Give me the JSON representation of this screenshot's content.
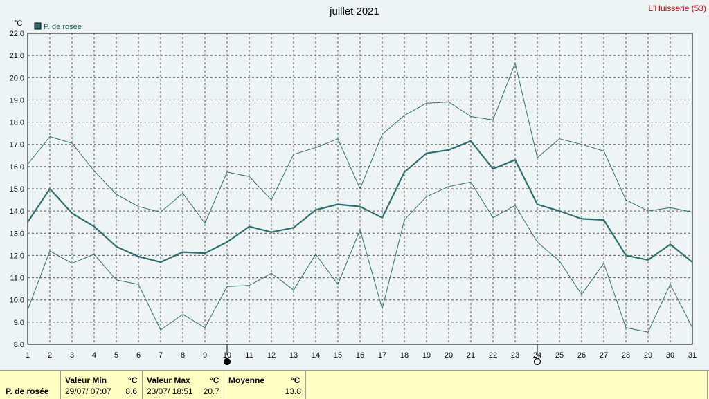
{
  "header": {
    "title": "juillet 2021",
    "station": "L'Huisserie (53)"
  },
  "colors": {
    "series": "#2e6d6d",
    "grid": "#555555",
    "station": "#cc0000",
    "stats_bg": "#ffffc4"
  },
  "chart_data": {
    "type": "line",
    "title": "juillet 2021",
    "ylabel": "°C",
    "xlabel": "",
    "ylim": [
      8.0,
      22.0
    ],
    "y_ticks": [
      "8.0",
      "9.0",
      "10.0",
      "11.0",
      "12.0",
      "13.0",
      "14.0",
      "15.0",
      "16.0",
      "17.0",
      "18.0",
      "19.0",
      "20.0",
      "21.0",
      "22.0"
    ],
    "x": [
      1,
      2,
      3,
      4,
      5,
      6,
      7,
      8,
      9,
      10,
      11,
      12,
      13,
      14,
      15,
      16,
      17,
      18,
      19,
      20,
      21,
      22,
      23,
      24,
      25,
      26,
      27,
      28,
      29,
      30,
      31
    ],
    "x_tick_labels": [
      "1",
      "2",
      "3",
      "4",
      "5",
      "6",
      "7",
      "8",
      "9",
      "10",
      "11",
      "12",
      "13",
      "14",
      "15",
      "16",
      "17",
      "18",
      "19",
      "20",
      "21",
      "22",
      "23",
      "24",
      "25",
      "26",
      "27",
      "28",
      "29",
      "30",
      "31"
    ],
    "grid": true,
    "legend": {
      "position": "top-left",
      "entries": [
        "P. de rosée"
      ]
    },
    "moon_markers": [
      {
        "day": 10,
        "phase": "new-moon"
      },
      {
        "day": 24,
        "phase": "full-moon"
      }
    ],
    "series": [
      {
        "name": "P. de rosée",
        "role": "mean",
        "values": [
          13.5,
          15.0,
          13.9,
          13.3,
          12.4,
          11.95,
          11.7,
          12.15,
          12.1,
          12.6,
          13.3,
          13.05,
          13.25,
          14.05,
          14.3,
          14.2,
          13.7,
          15.75,
          16.6,
          16.75,
          17.15,
          15.9,
          16.3,
          14.3,
          14.0,
          13.65,
          13.6,
          12.0,
          11.8,
          12.5,
          11.7
        ]
      },
      {
        "role": "max",
        "values": [
          16.1,
          17.35,
          17.05,
          15.8,
          14.75,
          14.2,
          13.95,
          14.8,
          13.45,
          15.75,
          15.55,
          14.5,
          16.55,
          16.85,
          17.25,
          15.0,
          17.45,
          18.3,
          18.85,
          18.9,
          18.25,
          18.1,
          20.65,
          16.4,
          17.25,
          17.0,
          16.7,
          14.5,
          14.0,
          14.15,
          13.95
        ]
      },
      {
        "role": "min",
        "values": [
          9.55,
          12.2,
          11.65,
          12.05,
          10.9,
          10.7,
          8.65,
          9.35,
          8.75,
          10.6,
          10.65,
          11.2,
          10.45,
          12.05,
          10.7,
          13.15,
          9.6,
          13.6,
          14.65,
          15.1,
          15.3,
          13.7,
          14.25,
          12.6,
          11.75,
          10.25,
          11.65,
          8.75,
          8.55,
          10.7,
          8.75
        ]
      }
    ]
  },
  "stats": {
    "row_label": "P. de rosée",
    "min_header": "Valeur Min",
    "min_unit": "°C",
    "min_time": "29/07/  07:07",
    "min_value": "8.6",
    "max_header": "Valeur Max",
    "max_unit": "°C",
    "max_time": "23/07/  18:51",
    "max_value": "20.7",
    "avg_header": "Moyenne",
    "avg_unit": "°C",
    "avg_value": "13.8"
  }
}
